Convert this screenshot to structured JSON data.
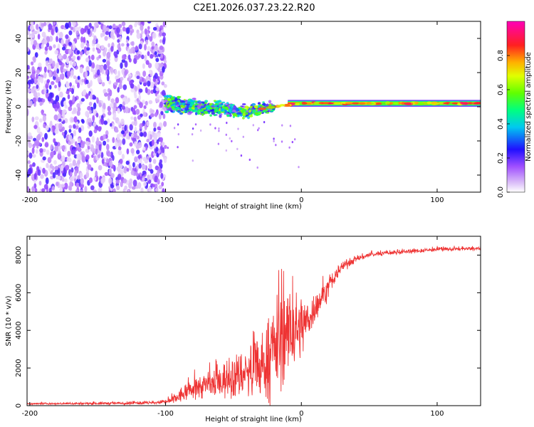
{
  "title": "C2E1.2026.037.23.22.R20",
  "chart_data": [
    {
      "type": "heatmap",
      "panel": "spectrogram",
      "xlabel": "Height of straight line (km)",
      "ylabel": "Frequency (Hz)",
      "xlim": [
        -202,
        132
      ],
      "ylim": [
        -50,
        50
      ],
      "xticks": [
        -200,
        -100,
        0,
        100
      ],
      "yticks": [
        -40,
        -20,
        0,
        20,
        40
      ],
      "colorbar": {
        "label": "Normalized spectral amplitude",
        "range": [
          0,
          1
        ],
        "ticks": [
          0.0,
          0.2,
          0.4,
          0.6,
          0.8
        ],
        "colormap": [
          "#ffffff",
          "#c8a0f5",
          "#8000ff",
          "#2010ff",
          "#00e0e0",
          "#00ff40",
          "#c8ff00",
          "#ffa000",
          "#ff2020",
          "#ff00b0"
        ]
      },
      "regions": [
        {
          "x_range": [
            -202,
            -100
          ],
          "freq_range": [
            -50,
            50
          ],
          "description": "broadband noise, amplitude 0.05-0.25"
        },
        {
          "x_range": [
            -100,
            -20
          ],
          "center_freq": [
            2,
            0,
            -3,
            -2,
            1
          ],
          "freq_spread": 8,
          "amplitude": [
            0.3,
            0.5
          ]
        },
        {
          "x_range": [
            -20,
            132
          ],
          "center_freq": 2,
          "freq_spread": 3,
          "amplitude": [
            0.8,
            1.0
          ]
        }
      ],
      "trend_points": [
        {
          "x": -100,
          "f": 2
        },
        {
          "x": -80,
          "f": 0
        },
        {
          "x": -60,
          "f": -1
        },
        {
          "x": -40,
          "f": -3
        },
        {
          "x": -20,
          "f": 0
        },
        {
          "x": -10,
          "f": 1
        },
        {
          "x": 0,
          "f": 2
        },
        {
          "x": 50,
          "f": 2
        },
        {
          "x": 95,
          "f": 2
        },
        {
          "x": 132,
          "f": 2
        }
      ]
    },
    {
      "type": "line",
      "panel": "snr",
      "xlabel": "Height of straight line (km)",
      "ylabel": "SNR (10 * v/v)",
      "xlim": [
        -202,
        132
      ],
      "ylim": [
        0,
        9000
      ],
      "xticks": [
        -200,
        -100,
        0,
        100
      ],
      "yticks": [
        0,
        2000,
        4000,
        6000,
        8000
      ],
      "color": "#ee3333",
      "series": [
        {
          "name": "SNR",
          "x": [
            -202,
            -150,
            -110,
            -100,
            -95,
            -90,
            -80,
            -70,
            -60,
            -50,
            -40,
            -30,
            -25,
            -20,
            -15,
            -10,
            -5,
            0,
            5,
            10,
            20,
            30,
            40,
            50,
            60,
            80,
            100,
            132
          ],
          "y": [
            100,
            120,
            150,
            200,
            300,
            500,
            900,
            1100,
            1300,
            1500,
            1800,
            2000,
            2400,
            3000,
            3500,
            3900,
            4000,
            4200,
            4600,
            5200,
            6300,
            7400,
            7800,
            8000,
            8100,
            8200,
            8300,
            8350
          ]
        }
      ],
      "noise_amplitude": [
        {
          "x": -200,
          "amp": 60
        },
        {
          "x": -100,
          "amp": 150
        },
        {
          "x": -90,
          "amp": 600
        },
        {
          "x": -60,
          "amp": 1400
        },
        {
          "x": -30,
          "amp": 2500
        },
        {
          "x": -18,
          "amp": 4000
        },
        {
          "x": -5,
          "amp": 3200
        },
        {
          "x": 10,
          "amp": 1200
        },
        {
          "x": 30,
          "amp": 400
        },
        {
          "x": 50,
          "amp": 200
        },
        {
          "x": 132,
          "amp": 150
        }
      ]
    }
  ]
}
